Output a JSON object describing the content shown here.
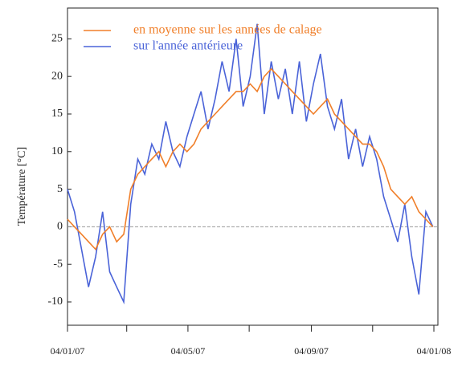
{
  "chart_data": {
    "type": "line",
    "y_label": "Température [°C]",
    "x": [
      "04/01/07",
      "11/01/07",
      "18/01/07",
      "25/01/07",
      "01/02/07",
      "08/02/07",
      "15/02/07",
      "22/02/07",
      "01/03/07",
      "08/03/07",
      "15/03/07",
      "22/03/07",
      "29/03/07",
      "05/04/07",
      "12/04/07",
      "19/04/07",
      "26/04/07",
      "03/05/07",
      "10/05/07",
      "17/05/07",
      "24/05/07",
      "31/05/07",
      "07/06/07",
      "14/06/07",
      "21/06/07",
      "28/06/07",
      "05/07/07",
      "12/07/07",
      "19/07/07",
      "26/07/07",
      "02/08/07",
      "09/08/07",
      "16/08/07",
      "23/08/07",
      "30/08/07",
      "06/09/07",
      "13/09/07",
      "20/09/07",
      "27/09/07",
      "04/10/07",
      "11/10/07",
      "18/10/07",
      "25/10/07",
      "01/11/07",
      "08/11/07",
      "15/11/07",
      "22/11/07",
      "29/11/07",
      "06/12/07",
      "13/12/07",
      "20/12/07",
      "27/12/07",
      "03/01/08"
    ],
    "series": [
      {
        "name": "en moyenne sur les années de calage",
        "color": "#f07f2a",
        "values": [
          1,
          0,
          -1,
          -2,
          -3,
          -1,
          0,
          -2,
          -1,
          5,
          7,
          8,
          9,
          10,
          8,
          10,
          11,
          10,
          11,
          13,
          14,
          15,
          16,
          17,
          18,
          18,
          19,
          18,
          20,
          21,
          20,
          19,
          18,
          17,
          16,
          15,
          16,
          17,
          15,
          14,
          13,
          12,
          11,
          11,
          10,
          8,
          5,
          4,
          3,
          4,
          2,
          1,
          0
        ]
      },
      {
        "name": "sur l'année antérieure",
        "color": "#4a63d8",
        "values": [
          5,
          2,
          -3,
          -8,
          -4,
          2,
          -6,
          -8,
          -10,
          3,
          9,
          7,
          11,
          9,
          14,
          10,
          8,
          12,
          15,
          18,
          13,
          17,
          22,
          18,
          25,
          16,
          20,
          27,
          15,
          22,
          17,
          21,
          15,
          22,
          14,
          19,
          23,
          16,
          13,
          17,
          9,
          13,
          8,
          12,
          9,
          4,
          1,
          -2,
          3,
          -4,
          -9,
          2,
          0
        ]
      }
    ],
    "xlim": [
      "04/01/07",
      "08/01/08"
    ],
    "xticks": [
      "04/01/07",
      "04/05/07",
      "04/09/07",
      "04/01/08"
    ],
    "xminor_ticks": [
      "04/03/07",
      "04/07/07",
      "04/11/07"
    ],
    "ylim": [
      -13.1,
      29.1
    ],
    "yticks": [
      -10,
      -5,
      0,
      5,
      10,
      15,
      20,
      25
    ],
    "zero_line": true,
    "legend": "upper left"
  }
}
